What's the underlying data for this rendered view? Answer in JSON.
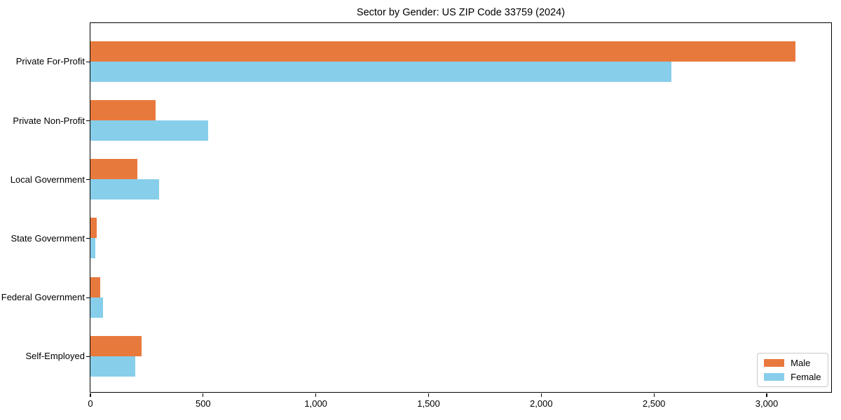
{
  "title": "Sector by Gender: US ZIP Code 33759 (2024)",
  "chart_data": {
    "type": "bar",
    "orientation": "horizontal",
    "title": "Sector by Gender: US ZIP Code 33759 (2024)",
    "xlabel": "",
    "ylabel": "",
    "categories": [
      "Private For-Profit",
      "Private Non-Profit",
      "Local Government",
      "State Government",
      "Federal Government",
      "Self-Employed"
    ],
    "series": [
      {
        "name": "Male",
        "color": "#E8793D",
        "values": [
          3130,
          290,
          210,
          28,
          45,
          228
        ]
      },
      {
        "name": "Female",
        "color": "#87CEEB",
        "values": [
          2580,
          525,
          305,
          24,
          57,
          200
        ]
      }
    ],
    "xlim": [
      0,
      3286
    ],
    "xticks": [
      0,
      500,
      1000,
      1500,
      2000,
      2500,
      3000
    ],
    "xtick_labels": [
      "0",
      "500",
      "1,000",
      "1,500",
      "2,000",
      "2,500",
      "3,000"
    ],
    "grid": false,
    "legend": {
      "position": "lower right",
      "entries": [
        "Male",
        "Female"
      ]
    }
  }
}
